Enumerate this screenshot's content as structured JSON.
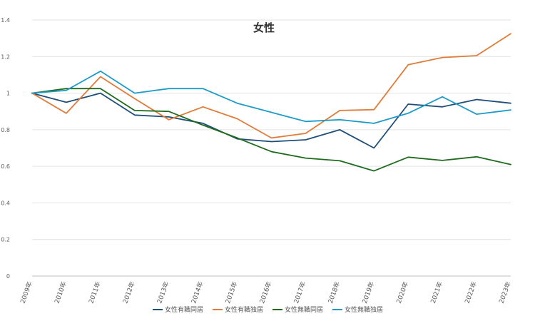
{
  "chart_data": {
    "type": "line",
    "title": "女性",
    "xlabel": "",
    "ylabel": "",
    "categories": [
      "2009年",
      "2010年",
      "2011年",
      "2012年",
      "2013年",
      "2014年",
      "2015年",
      "2016年",
      "2017年",
      "2018年",
      "2019年",
      "2020年",
      "2021年",
      "2022年",
      "2023年"
    ],
    "ylim": [
      0,
      1.4
    ],
    "yticks": [
      "0",
      "0.2",
      "0.4",
      "0.6",
      "0.8",
      "1",
      "1.2",
      "1.4"
    ],
    "grid": true,
    "legend_position": "bottom",
    "series": [
      {
        "name": "女性有職同居",
        "color": "#1f4e79",
        "values": [
          1.0,
          0.95,
          1.0,
          0.88,
          0.87,
          0.835,
          0.75,
          0.735,
          0.745,
          0.8,
          0.7,
          0.94,
          0.925,
          0.965,
          0.945
        ]
      },
      {
        "name": "女性有職独居",
        "color": "#e07b39",
        "values": [
          1.0,
          0.89,
          1.09,
          0.97,
          0.855,
          0.925,
          0.86,
          0.755,
          0.78,
          0.905,
          0.91,
          1.155,
          1.195,
          1.205,
          1.325
        ]
      },
      {
        "name": "女性無職同居",
        "color": "#1e6b1e",
        "values": [
          1.0,
          1.025,
          1.025,
          0.905,
          0.9,
          0.825,
          0.755,
          0.68,
          0.645,
          0.63,
          0.575,
          0.65,
          0.632,
          0.652,
          0.61
        ]
      },
      {
        "name": "女性無職独居",
        "color": "#1f9bc7",
        "values": [
          1.0,
          1.015,
          1.12,
          1.0,
          1.025,
          1.025,
          0.945,
          0.895,
          0.845,
          0.855,
          0.835,
          0.89,
          0.98,
          0.885,
          0.908
        ]
      }
    ]
  }
}
